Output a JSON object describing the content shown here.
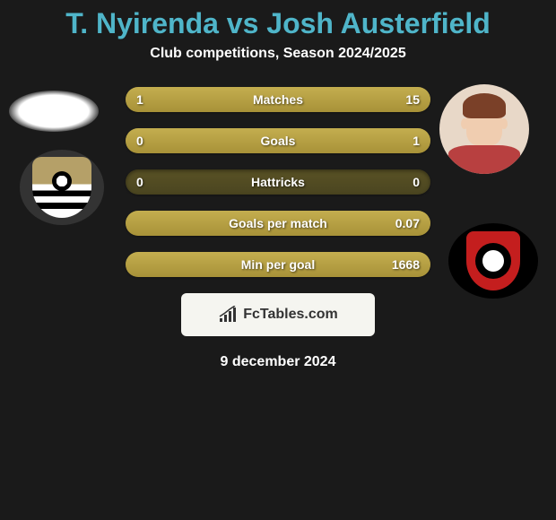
{
  "title": "T. Nyirenda vs Josh Austerfield",
  "subtitle": "Club competitions, Season 2024/2025",
  "stats": [
    {
      "label": "Matches",
      "left_value": "1",
      "right_value": "15",
      "left_pct": 6,
      "right_pct": 94
    },
    {
      "label": "Goals",
      "left_value": "0",
      "right_value": "1",
      "left_pct": 0,
      "right_pct": 100
    },
    {
      "label": "Hattricks",
      "left_value": "0",
      "right_value": "0",
      "left_pct": 0,
      "right_pct": 0
    },
    {
      "label": "Goals per match",
      "left_value": "",
      "right_value": "0.07",
      "left_pct": 0,
      "right_pct": 100
    },
    {
      "label": "Min per goal",
      "left_value": "",
      "right_value": "1668",
      "left_pct": 0,
      "right_pct": 100
    }
  ],
  "branding": "FcTables.com",
  "date": "9 december 2024",
  "colors": {
    "title_color": "#4fb5c9",
    "background": "#1a1a1a",
    "bar_empty": "#4a4520",
    "bar_fill": "#a89238",
    "text_white": "#ffffff"
  }
}
